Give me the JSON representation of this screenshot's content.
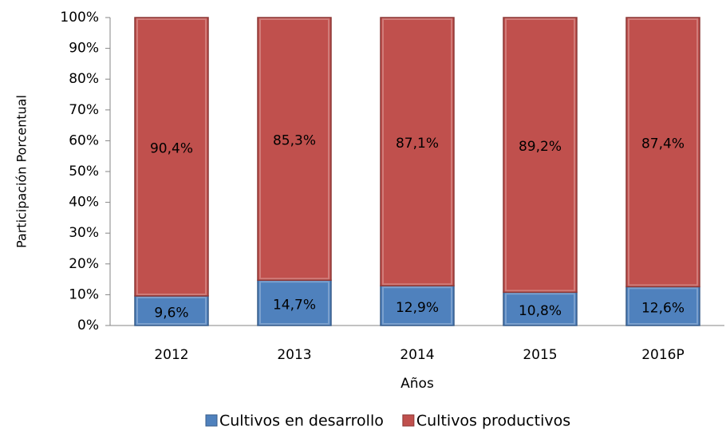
{
  "chart_data": {
    "type": "stacked_bar",
    "categories": [
      "2012",
      "2013",
      "2014",
      "2015",
      "2016P"
    ],
    "series": [
      {
        "name": "Cultivos en desarrollo",
        "color": "#4f81bd",
        "values": [
          9.6,
          14.7,
          12.9,
          10.8,
          12.6
        ],
        "value_labels": [
          "9,6%",
          "14,7%",
          "12,9%",
          "10,8%",
          "12,6%"
        ]
      },
      {
        "name": "Cultivos productivos",
        "color": "#c0504d",
        "values": [
          90.4,
          85.3,
          87.1,
          89.2,
          87.4
        ],
        "value_labels": [
          "90,4%",
          "85,3%",
          "87,1%",
          "89,2%",
          "87,4%"
        ]
      }
    ],
    "ylim": [
      0,
      100
    ],
    "yticks": [
      {
        "value": 0,
        "label": "0%"
      },
      {
        "value": 10,
        "label": "10%"
      },
      {
        "value": 20,
        "label": "20%"
      },
      {
        "value": 30,
        "label": "30%"
      },
      {
        "value": 40,
        "label": "40%"
      },
      {
        "value": 50,
        "label": "50%"
      },
      {
        "value": 60,
        "label": "60%"
      },
      {
        "value": 70,
        "label": "70%"
      },
      {
        "value": 80,
        "label": "80%"
      },
      {
        "value": 90,
        "label": "90%"
      },
      {
        "value": 100,
        "label": "100%"
      }
    ],
    "y_label": "Participación Porcentual",
    "x_label": "Años",
    "legend": "bottom"
  }
}
